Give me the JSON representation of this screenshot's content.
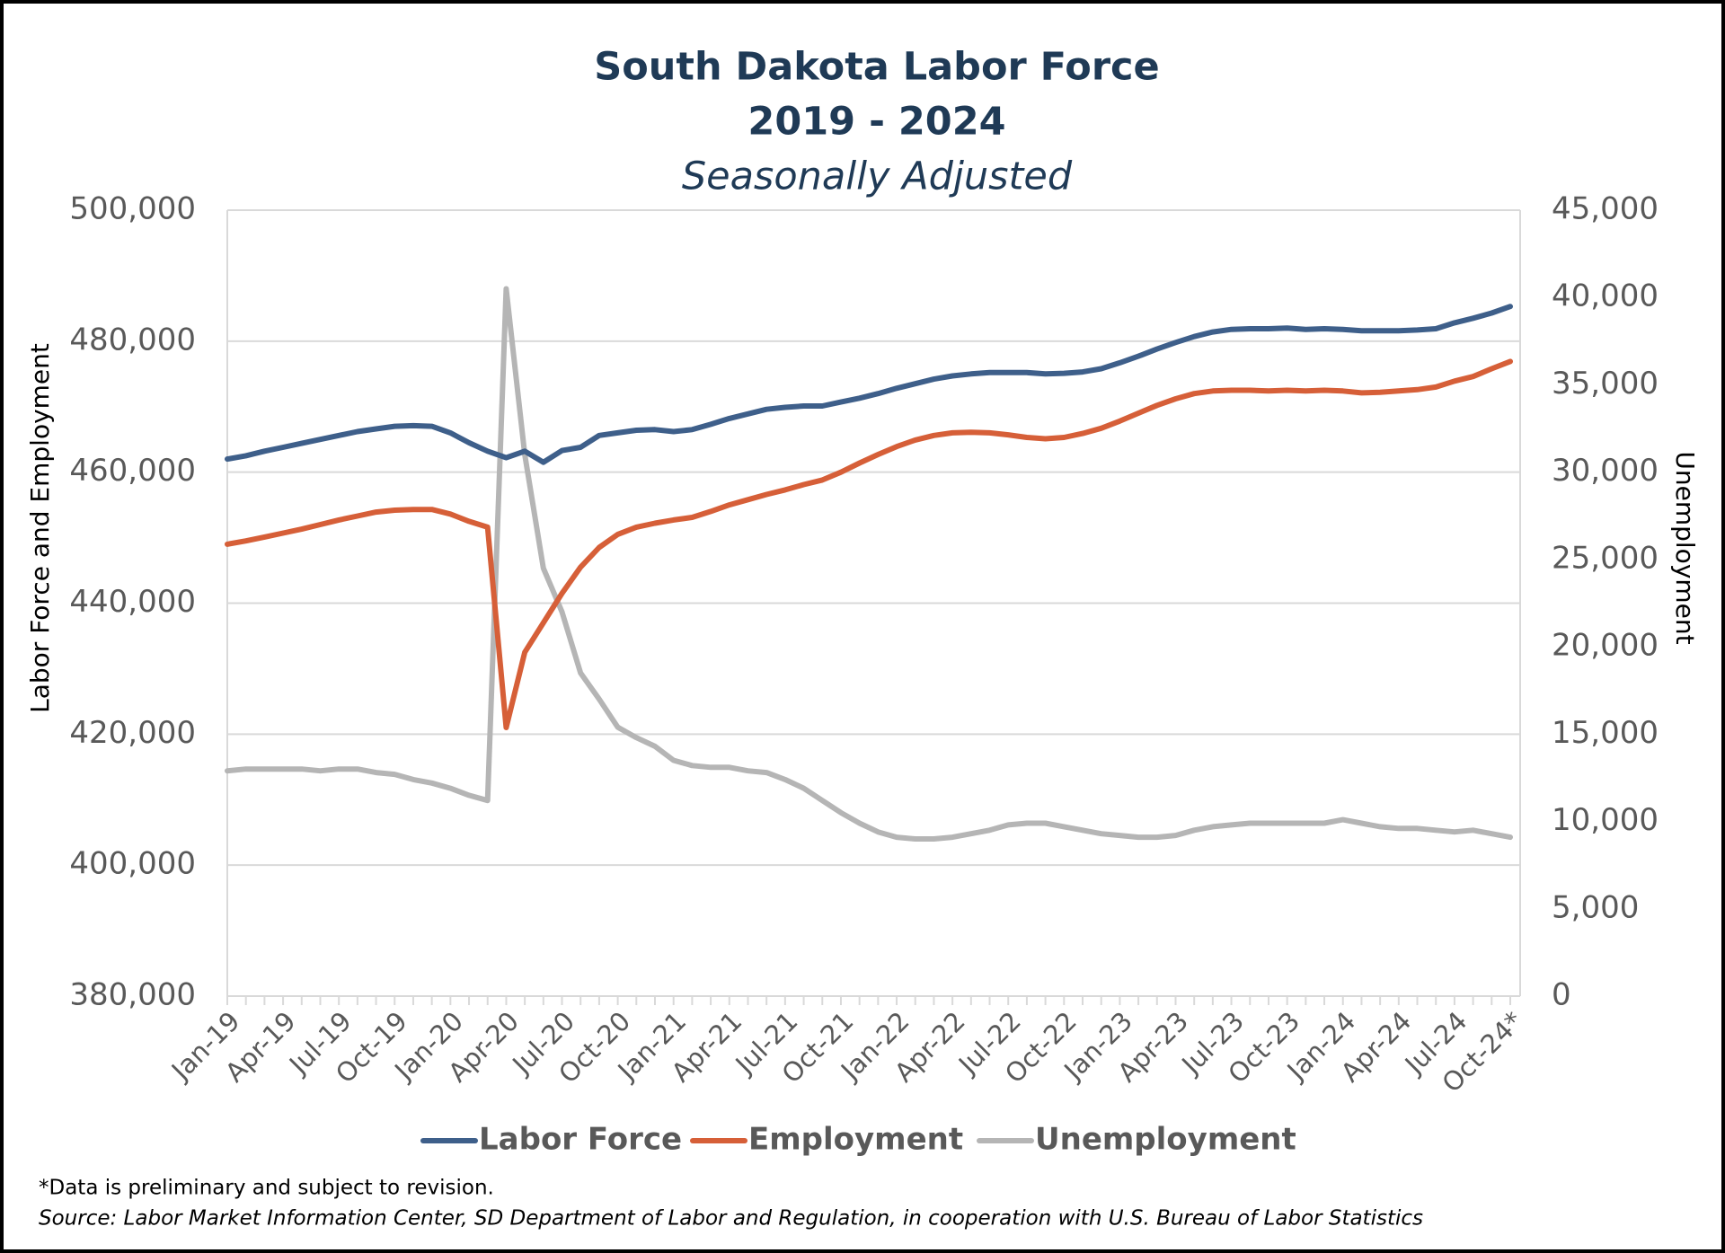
{
  "chart_data": {
    "type": "line",
    "title": [
      "South Dakota Labor Force",
      "2019 - 2024"
    ],
    "subtitle": "Seasonally Adjusted",
    "ylabel": "Labor  Force and Employment",
    "y2label": "Unemployment",
    "categories": [
      "Jan-19",
      null,
      null,
      "Apr-19",
      null,
      null,
      "Jul-19",
      null,
      null,
      "Oct-19",
      null,
      null,
      "Jan-20",
      null,
      null,
      "Apr-20",
      null,
      null,
      "Jul-20",
      null,
      null,
      "Oct-20",
      null,
      null,
      "Jan-21",
      null,
      null,
      "Apr-21",
      null,
      null,
      "Jul-21",
      null,
      null,
      "Oct-21",
      null,
      null,
      "Jan-22",
      null,
      null,
      "Apr-22",
      null,
      null,
      "Jul-22",
      null,
      null,
      "Oct-22",
      null,
      null,
      "Jan-23",
      null,
      null,
      "Apr-23",
      null,
      null,
      "Jul-23",
      null,
      null,
      "Oct-23",
      null,
      null,
      "Jan-24",
      null,
      null,
      "Apr-24",
      null,
      null,
      "Jul-24",
      null,
      null,
      "Oct-24*"
    ],
    "series": [
      {
        "name": "Labor Force",
        "color": "#3e5f8a",
        "values": [
          462000,
          462500,
          463200,
          463800,
          464400,
          465000,
          465600,
          466200,
          466600,
          467000,
          467100,
          467000,
          466000,
          464500,
          463200,
          462200,
          463200,
          461500,
          463300,
          463800,
          465600,
          466000,
          466400,
          466500,
          466200,
          466500,
          467300,
          468200,
          468900,
          469600,
          469900,
          470100,
          470100,
          470700,
          471300,
          472000,
          472800,
          473500,
          474200,
          474700,
          475000,
          475200,
          475200,
          475200,
          475000,
          475100,
          475300,
          475800,
          476700,
          477700,
          478800,
          479800,
          480700,
          481400,
          481800,
          481900,
          481900,
          482000,
          481800,
          481900,
          481800,
          481600,
          481600,
          481600,
          481700,
          481900,
          482800,
          483500,
          484300,
          485300
        ]
      },
      {
        "name": "Employment",
        "color": "#d65f38",
        "values": [
          449000,
          449500,
          450100,
          450700,
          451300,
          452000,
          452700,
          453300,
          453900,
          454200,
          454300,
          454300,
          453600,
          452500,
          451600,
          421000,
          432500,
          437000,
          441500,
          445500,
          448500,
          450500,
          451600,
          452200,
          452700,
          453100,
          454000,
          455000,
          455800,
          456600,
          457300,
          458100,
          458800,
          460000,
          461400,
          462700,
          463900,
          464900,
          465600,
          466000,
          466100,
          466000,
          465700,
          465300,
          465100,
          465300,
          465900,
          466700,
          467800,
          469000,
          470200,
          471200,
          472000,
          472400,
          472500,
          472500,
          472400,
          472500,
          472400,
          472500,
          472400,
          472100,
          472200,
          472400,
          472600,
          473000,
          473900,
          474600,
          475800,
          476900
        ]
      },
      {
        "name": "Unemployment",
        "color": "#b5b5b5",
        "axis": "y2",
        "values": [
          12900,
          13000,
          13000,
          13000,
          13000,
          12900,
          13000,
          13000,
          12800,
          12700,
          12400,
          12200,
          11900,
          11500,
          11200,
          40500,
          31000,
          24500,
          22000,
          18500,
          17000,
          15400,
          14800,
          14300,
          13500,
          13200,
          13100,
          13100,
          12900,
          12800,
          12400,
          11900,
          11200,
          10500,
          9900,
          9400,
          9100,
          9000,
          9000,
          9100,
          9300,
          9500,
          9800,
          9900,
          9900,
          9700,
          9500,
          9300,
          9200,
          9100,
          9100,
          9200,
          9500,
          9700,
          9800,
          9900,
          9900,
          9900,
          9900,
          9900,
          10100,
          9900,
          9700,
          9600,
          9600,
          9500,
          9400,
          9500,
          9300,
          9100
        ]
      }
    ],
    "ylim": [
      380000,
      500000
    ],
    "yticks": [
      {
        "value": 380000,
        "label": "380,000"
      },
      {
        "value": 400000,
        "label": "400,000"
      },
      {
        "value": 420000,
        "label": "420,000"
      },
      {
        "value": 440000,
        "label": "440,000"
      },
      {
        "value": 460000,
        "label": "460,000"
      },
      {
        "value": 480000,
        "label": "480,000"
      },
      {
        "value": 500000,
        "label": "500,000"
      }
    ],
    "y2lim": [
      0,
      45000
    ],
    "y2ticks": [
      0,
      {
        "value": 5000,
        "label": "5,000"
      },
      {
        "value": 10000,
        "label": "10,000"
      },
      {
        "value": 15000,
        "label": "15,000"
      },
      {
        "value": 20000,
        "label": "20,000"
      },
      {
        "value": 25000,
        "label": "25,000"
      },
      {
        "value": 30000,
        "label": "30,000"
      },
      {
        "value": 35000,
        "label": "35,000"
      },
      {
        "value": 40000,
        "label": "40,000"
      },
      {
        "value": 45000,
        "label": "45,000"
      }
    ],
    "grid": true,
    "legend": "bottom",
    "notes": [
      "*Data is preliminary and subject to revision.",
      "Source: Labor Market Information Center, SD Department of Labor and Regulation, in cooperation with U.S. Bureau of Labor Statistics"
    ]
  }
}
